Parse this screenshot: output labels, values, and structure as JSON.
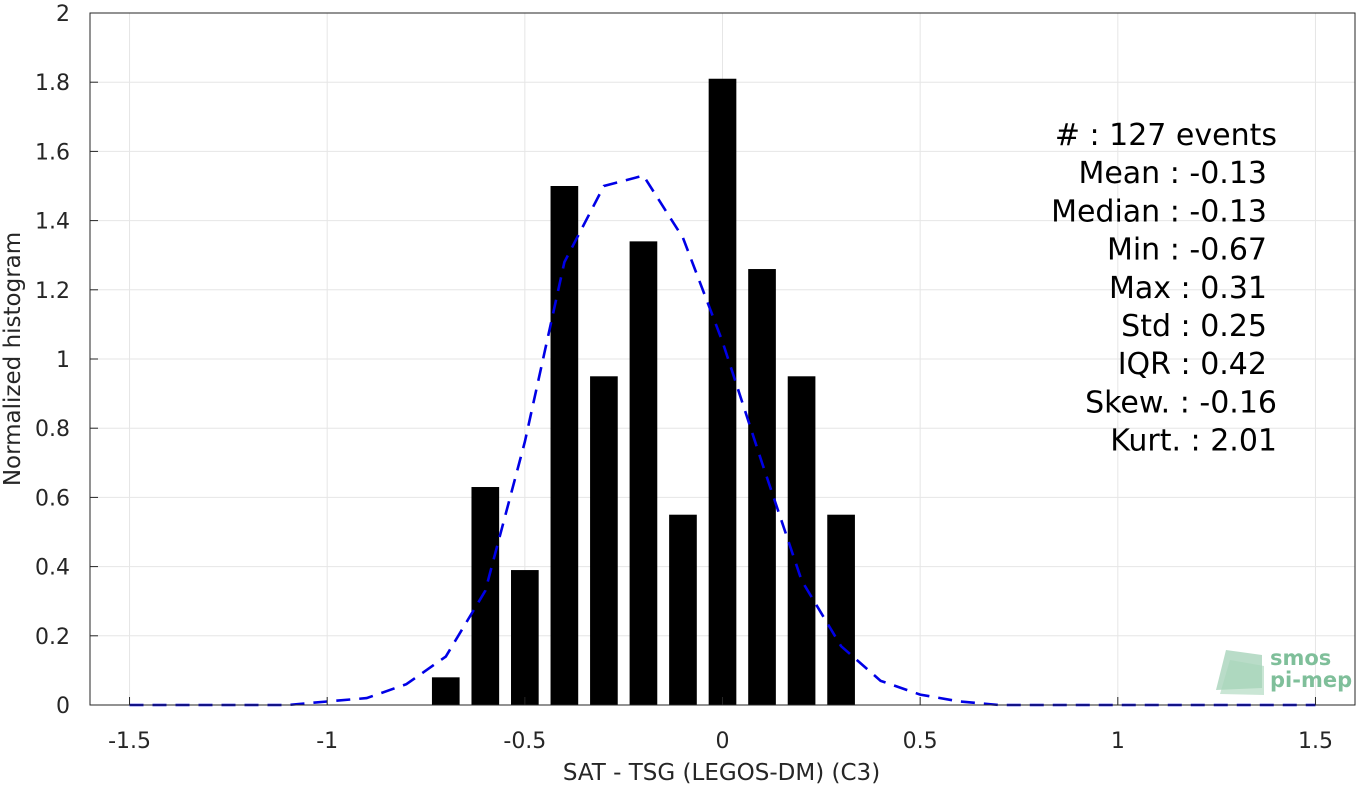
{
  "chart_data": {
    "type": "bar",
    "xlabel": "SAT - TSG (LEGOS-DM) (C3)",
    "ylabel": "Normalized histogram",
    "xlim": [
      -1.6,
      1.6
    ],
    "ylim": [
      0,
      2
    ],
    "grid": true,
    "x_ticks": [
      -1.5,
      -1,
      -0.5,
      0,
      0.5,
      1,
      1.5
    ],
    "x_tick_labels": [
      "-1.5",
      "-1",
      "-0.5",
      "0",
      "0.5",
      "1",
      "1.5"
    ],
    "y_ticks": [
      0,
      0.2,
      0.4,
      0.6,
      0.8,
      1,
      1.2,
      1.4,
      1.6,
      1.8,
      2
    ],
    "y_tick_labels": [
      "0",
      "0.2",
      "0.4",
      "0.6",
      "0.8",
      "1",
      "1.2",
      "1.4",
      "1.6",
      "1.8",
      "2"
    ],
    "bar_width": 0.07,
    "bars": {
      "color": "#000000",
      "x": [
        -0.7,
        -0.6,
        -0.5,
        -0.4,
        -0.3,
        -0.2,
        -0.1,
        0.0,
        0.1,
        0.2,
        0.3
      ],
      "values": [
        0.08,
        0.63,
        0.39,
        1.5,
        0.95,
        1.34,
        0.55,
        1.81,
        1.26,
        0.95,
        0.55
      ]
    },
    "fit": {
      "color": "#0000e6",
      "style": "dashed",
      "x": [
        -1.5,
        -1.4,
        -1.3,
        -1.2,
        -1.1,
        -1.0,
        -0.9,
        -0.8,
        -0.7,
        -0.6,
        -0.5,
        -0.4,
        -0.3,
        -0.2,
        -0.1,
        0.0,
        0.1,
        0.2,
        0.3,
        0.4,
        0.5,
        0.6,
        0.7,
        0.8,
        0.9,
        1.0,
        1.1,
        1.2,
        1.3,
        1.4,
        1.5
      ],
      "y": [
        0.0,
        0.0,
        0.0,
        0.0,
        0.0,
        0.01,
        0.02,
        0.06,
        0.14,
        0.33,
        0.76,
        1.28,
        1.5,
        1.53,
        1.35,
        1.05,
        0.7,
        0.36,
        0.17,
        0.07,
        0.03,
        0.01,
        0.0,
        0.0,
        0.0,
        0.0,
        0.0,
        0.0,
        0.0,
        0.0,
        0.0
      ]
    },
    "stats": [
      "#  : 127 events",
      "Mean : -0.13",
      "Median : -0.13",
      "Min : -0.67",
      "Max : 0.31",
      "Std : 0.25",
      "IQR : 0.42",
      "Skew. : -0.16",
      "Kurt. : 2.01"
    ]
  },
  "logo": {
    "line1": "smos",
    "line2": "pi-mep",
    "color": "#7fbf9a"
  }
}
